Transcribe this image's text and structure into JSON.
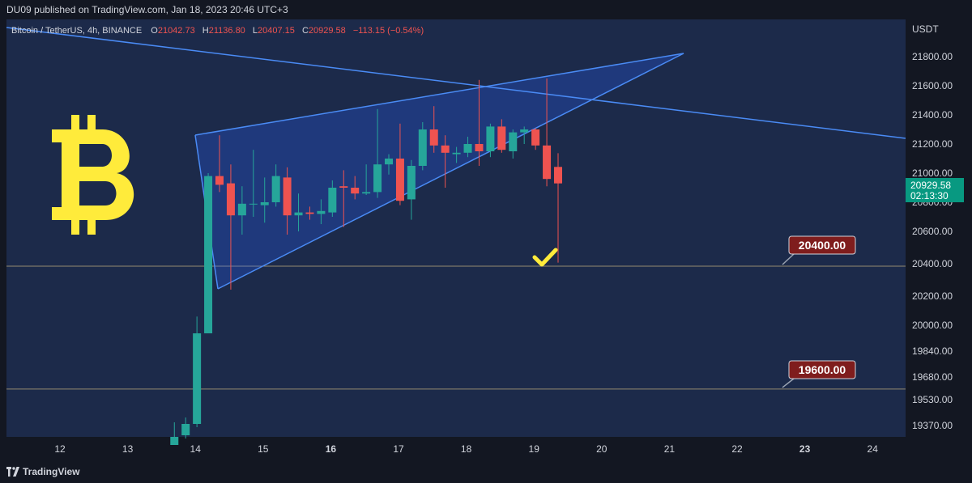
{
  "publisher_line": "DU09 published on TradingView.com, Jan 18, 2023 20:46 UTC+3",
  "legend": {
    "symbol": "Bitcoin / TetherUS, 4h, BINANCE",
    "o_label": "O",
    "o_value": "21042.73",
    "h_label": "H",
    "h_value": "21136.80",
    "l_label": "L",
    "l_value": "20407.15",
    "c_label": "C",
    "c_value": "20929.58",
    "change": "−113.15 (−0.54%)"
  },
  "price_axis": {
    "currency": "USDT",
    "ticks": [
      "21800.00",
      "21600.00",
      "21400.00",
      "21200.00",
      "21000.00",
      "20800.00",
      "20600.00",
      "20400.00",
      "20200.00",
      "20000.00",
      "19840.00",
      "19680.00",
      "19530.00",
      "19370.00"
    ]
  },
  "last_price": {
    "value": "20929.58",
    "countdown": "02:13:30"
  },
  "levels": [
    {
      "label": "20400.00",
      "price": 20400
    },
    {
      "label": "19600.00",
      "price": 19600
    }
  ],
  "time_axis": {
    "labels": [
      "12",
      "13",
      "14",
      "15",
      "16",
      "17",
      "18",
      "19",
      "20",
      "21",
      "22",
      "23",
      "24"
    ],
    "bold": [
      "16",
      "23"
    ]
  },
  "footer": {
    "brand": "TradingView"
  },
  "colors": {
    "background": "#1c2a4a",
    "up": "#26a69a",
    "down": "#ef5350",
    "line": "#2962ff",
    "level_tag": "#7f1d1d",
    "bitcoin": "#ffeb3b"
  },
  "chart_data": {
    "type": "candlestick",
    "interval": "4h",
    "ylim": [
      19280,
      21980
    ],
    "candles": [
      {
        "o": 19250,
        "h": 19390,
        "l": 19250,
        "c": 19300,
        "t": "13 20:00"
      },
      {
        "o": 19310,
        "h": 19420,
        "l": 19290,
        "c": 19380,
        "t": "14 00:00"
      },
      {
        "o": 19380,
        "h": 20060,
        "l": 19360,
        "c": 19950,
        "t": "14 04:00"
      },
      {
        "o": 19950,
        "h": 21000,
        "l": 19950,
        "c": 20980,
        "t": "14 08:00"
      },
      {
        "o": 20980,
        "h": 21260,
        "l": 20870,
        "c": 20920,
        "t": "14 12:00"
      },
      {
        "o": 20930,
        "h": 21060,
        "l": 20240,
        "c": 20710,
        "t": "14 16:00"
      },
      {
        "o": 20710,
        "h": 20910,
        "l": 20580,
        "c": 20790,
        "t": "14 20:00"
      },
      {
        "o": 20790,
        "h": 21160,
        "l": 20700,
        "c": 20790,
        "t": "15 00:00"
      },
      {
        "o": 20780,
        "h": 20970,
        "l": 20660,
        "c": 20800,
        "t": "15 04:00"
      },
      {
        "o": 20800,
        "h": 21060,
        "l": 20770,
        "c": 20980,
        "t": "15 08:00"
      },
      {
        "o": 20970,
        "h": 21040,
        "l": 20580,
        "c": 20710,
        "t": "15 12:00"
      },
      {
        "o": 20710,
        "h": 20860,
        "l": 20600,
        "c": 20730,
        "t": "15 16:00"
      },
      {
        "o": 20730,
        "h": 20770,
        "l": 20680,
        "c": 20720,
        "t": "15 20:00"
      },
      {
        "o": 20720,
        "h": 20820,
        "l": 20650,
        "c": 20740,
        "t": "16 00:00"
      },
      {
        "o": 20730,
        "h": 20950,
        "l": 20700,
        "c": 20900,
        "t": "16 04:00"
      },
      {
        "o": 20910,
        "h": 21020,
        "l": 20630,
        "c": 20900,
        "t": "16 08:00"
      },
      {
        "o": 20900,
        "h": 20980,
        "l": 20820,
        "c": 20860,
        "t": "16 12:00"
      },
      {
        "o": 20860,
        "h": 21060,
        "l": 20850,
        "c": 20870,
        "t": "16 16:00"
      },
      {
        "o": 20870,
        "h": 21440,
        "l": 20830,
        "c": 21060,
        "t": "16 20:00"
      },
      {
        "o": 21060,
        "h": 21130,
        "l": 20990,
        "c": 21100,
        "t": "17 00:00"
      },
      {
        "o": 21100,
        "h": 21340,
        "l": 20780,
        "c": 20810,
        "t": "17 04:00"
      },
      {
        "o": 20820,
        "h": 21090,
        "l": 20680,
        "c": 21050,
        "t": "17 08:00"
      },
      {
        "o": 21050,
        "h": 21350,
        "l": 21020,
        "c": 21300,
        "t": "17 12:00"
      },
      {
        "o": 21300,
        "h": 21460,
        "l": 21140,
        "c": 21190,
        "t": "17 16:00"
      },
      {
        "o": 21190,
        "h": 21260,
        "l": 20900,
        "c": 21140,
        "t": "17 20:00"
      },
      {
        "o": 21130,
        "h": 21180,
        "l": 21070,
        "c": 21140,
        "t": "18 00:00"
      },
      {
        "o": 21140,
        "h": 21250,
        "l": 21110,
        "c": 21200,
        "t": "18 04:00"
      },
      {
        "o": 21200,
        "h": 21640,
        "l": 21050,
        "c": 21150,
        "t": "18 08:00"
      },
      {
        "o": 21150,
        "h": 21340,
        "l": 21110,
        "c": 21320,
        "t": "18 12:00"
      },
      {
        "o": 21320,
        "h": 21370,
        "l": 21140,
        "c": 21160,
        "t": "18 16:00"
      },
      {
        "o": 21150,
        "h": 21300,
        "l": 21100,
        "c": 21280,
        "t": "18 20:00"
      },
      {
        "o": 21280,
        "h": 21320,
        "l": 21200,
        "c": 21300,
        "t": "19 00:00"
      },
      {
        "o": 21300,
        "h": 21310,
        "l": 21160,
        "c": 21190,
        "t": "19 04:00"
      },
      {
        "o": 21190,
        "h": 21650,
        "l": 20910,
        "c": 20960,
        "t": "19 08:00"
      },
      {
        "o": 21042.73,
        "h": 21136.8,
        "l": 20407.15,
        "c": 20929.58,
        "t": "19 12:00"
      }
    ]
  }
}
